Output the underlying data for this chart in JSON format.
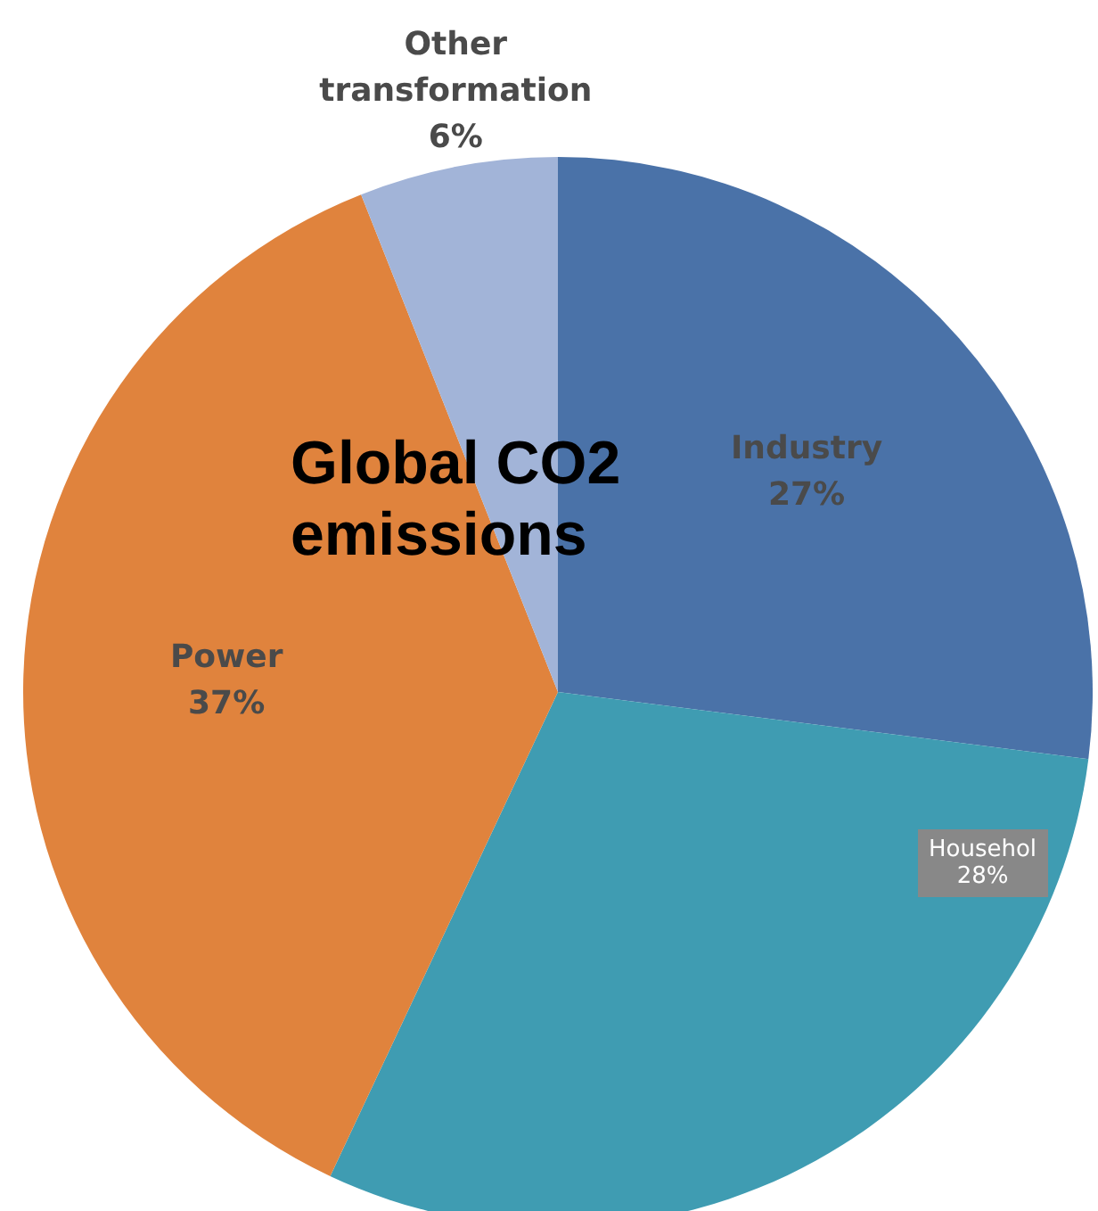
{
  "chart_data": {
    "type": "pie",
    "title": "Global CO2 emissions",
    "categories": [
      "Industry",
      null,
      "Power",
      "Other transformation"
    ],
    "values": [
      27,
      30,
      37,
      6
    ],
    "colors": [
      "#4a72a8",
      "#3f9cb2",
      "#e0833d",
      "#a2b4d8"
    ],
    "value_labels": [
      "27%",
      null,
      "37%",
      "6%"
    ],
    "annotations": [
      "Househol\n28%"
    ]
  }
}
